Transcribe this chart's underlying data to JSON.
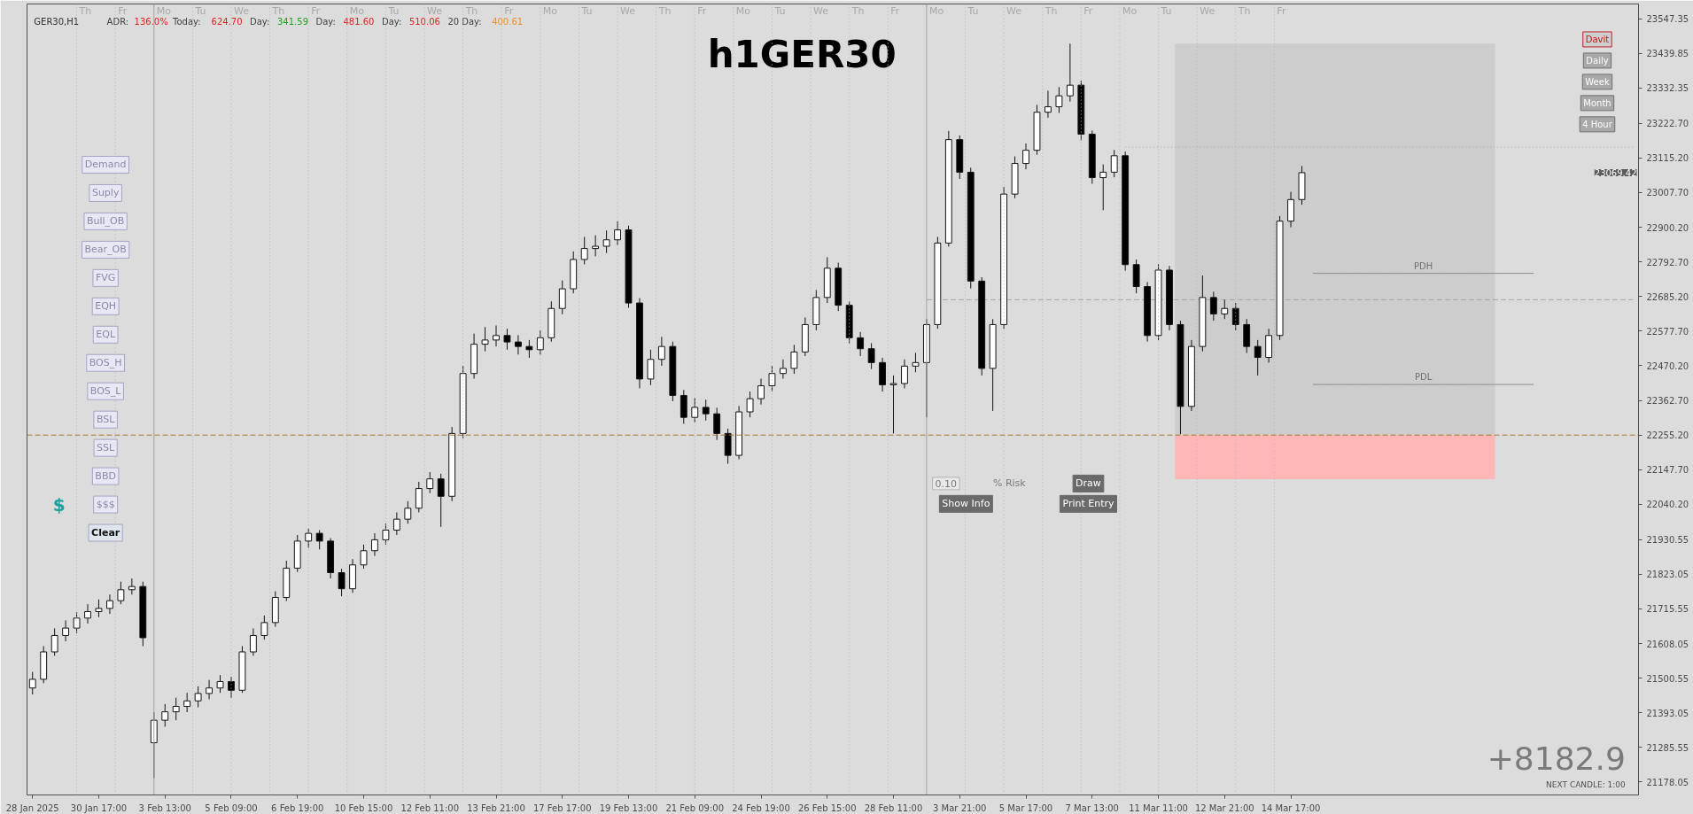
{
  "chart_data": {
    "type": "candlestick",
    "title": "h1GER30",
    "subtitle": "GER30,H1",
    "categories": [
      "28 Jan 2025",
      null,
      null,
      null,
      null,
      null,
      "30 Jan 17:00",
      null,
      null,
      null,
      null,
      null,
      "3 Feb 13:00",
      null,
      null,
      null,
      null,
      null,
      "5 Feb 09:00",
      null,
      null,
      null,
      null,
      null,
      "6 Feb 19:00",
      null,
      null,
      null,
      null,
      null,
      "10 Feb 15:00",
      null,
      null,
      null,
      null,
      null,
      "12 Feb 11:00",
      null,
      null,
      null,
      null,
      null,
      "13 Feb 21:00",
      null,
      null,
      null,
      null,
      null,
      "17 Feb 17:00",
      null,
      null,
      null,
      null,
      null,
      "19 Feb 13:00",
      null,
      null,
      null,
      null,
      null,
      "21 Feb 09:00",
      null,
      null,
      null,
      null,
      null,
      "24 Feb 19:00",
      null,
      null,
      null,
      null,
      null,
      "26 Feb 15:00",
      null,
      null,
      null,
      null,
      null,
      "28 Feb 11:00",
      null,
      null,
      null,
      null,
      null,
      "3 Mar 21:00",
      null,
      null,
      null,
      null,
      null,
      "5 Mar 17:00",
      null,
      null,
      null,
      null,
      null,
      "7 Mar 13:00",
      null,
      null,
      null,
      null,
      null,
      "11 Mar 11:00",
      null,
      null,
      null,
      null,
      null,
      "12 Mar 21:00",
      null,
      null,
      null,
      null,
      null,
      "14 Mar 17:00",
      null,
      null,
      null,
      null,
      null,
      null,
      null,
      null,
      null,
      null,
      null,
      null,
      null,
      null,
      null,
      null,
      null,
      null,
      null,
      null,
      null,
      null,
      null,
      null,
      null,
      null,
      null,
      null,
      null,
      null,
      null
    ],
    "ohlc": [
      [
        21470,
        21520,
        21450,
        21497
      ],
      [
        21497,
        21600,
        21485,
        21582
      ],
      [
        21582,
        21655,
        21570,
        21633
      ],
      [
        21633,
        21680,
        21615,
        21656
      ],
      [
        21656,
        21705,
        21640,
        21687
      ],
      [
        21687,
        21730,
        21670,
        21707
      ],
      [
        21707,
        21745,
        21690,
        21717
      ],
      [
        21717,
        21760,
        21700,
        21741
      ],
      [
        21741,
        21800,
        21730,
        21775
      ],
      [
        21775,
        21810,
        21760,
        21785
      ],
      [
        21785,
        21800,
        21600,
        21626
      ],
      [
        21300,
        21395,
        21190,
        21370
      ],
      [
        21370,
        21420,
        21350,
        21396
      ],
      [
        21396,
        21440,
        21370,
        21413
      ],
      [
        21413,
        21455,
        21395,
        21430
      ],
      [
        21430,
        21475,
        21410,
        21453
      ],
      [
        21453,
        21495,
        21435,
        21470
      ],
      [
        21470,
        21510,
        21455,
        21490
      ],
      [
        21490,
        21505,
        21440,
        21463
      ],
      [
        21463,
        21600,
        21455,
        21582
      ],
      [
        21582,
        21655,
        21570,
        21633
      ],
      [
        21633,
        21695,
        21620,
        21673
      ],
      [
        21673,
        21770,
        21660,
        21751
      ],
      [
        21751,
        21865,
        21740,
        21842
      ],
      [
        21842,
        21945,
        21830,
        21926
      ],
      [
        21926,
        21965,
        21905,
        21950
      ],
      [
        21950,
        21960,
        21900,
        21926
      ],
      [
        21926,
        21935,
        21810,
        21828
      ],
      [
        21828,
        21840,
        21755,
        21778
      ],
      [
        21778,
        21870,
        21765,
        21852
      ],
      [
        21852,
        21915,
        21840,
        21896
      ],
      [
        21896,
        21950,
        21880,
        21930
      ],
      [
        21930,
        21980,
        21915,
        21960
      ],
      [
        21960,
        22015,
        21945,
        21994
      ],
      [
        21994,
        22050,
        21980,
        22028
      ],
      [
        22028,
        22110,
        22015,
        22089
      ],
      [
        22089,
        22140,
        22075,
        22119
      ],
      [
        22119,
        22135,
        21970,
        22065
      ],
      [
        22065,
        22280,
        22050,
        22260
      ],
      [
        22260,
        22470,
        22245,
        22446
      ],
      [
        22446,
        22570,
        22430,
        22537
      ],
      [
        22537,
        22590,
        22515,
        22550
      ],
      [
        22550,
        22595,
        22530,
        22564
      ],
      [
        22564,
        22585,
        22520,
        22544
      ],
      [
        22544,
        22565,
        22505,
        22530
      ],
      [
        22530,
        22550,
        22495,
        22520
      ],
      [
        22520,
        22580,
        22505,
        22557
      ],
      [
        22557,
        22670,
        22545,
        22648
      ],
      [
        22648,
        22735,
        22630,
        22709
      ],
      [
        22709,
        22825,
        22695,
        22800
      ],
      [
        22800,
        22870,
        22785,
        22834
      ],
      [
        22834,
        22875,
        22810,
        22841
      ],
      [
        22841,
        22890,
        22820,
        22861
      ],
      [
        22861,
        22918,
        22845,
        22892
      ],
      [
        22892,
        22905,
        22650,
        22665
      ],
      [
        22665,
        22680,
        22400,
        22429
      ],
      [
        22429,
        22520,
        22410,
        22490
      ],
      [
        22490,
        22560,
        22470,
        22530
      ],
      [
        22530,
        22545,
        22360,
        22378
      ],
      [
        22378,
        22395,
        22290,
        22310
      ],
      [
        22310,
        22370,
        22295,
        22341
      ],
      [
        22341,
        22365,
        22300,
        22321
      ],
      [
        22321,
        22340,
        22240,
        22260
      ],
      [
        22260,
        22275,
        22166,
        22192
      ],
      [
        22192,
        22345,
        22180,
        22327
      ],
      [
        22327,
        22390,
        22310,
        22368
      ],
      [
        22368,
        22430,
        22350,
        22408
      ],
      [
        22408,
        22470,
        22390,
        22446
      ],
      [
        22446,
        22490,
        22430,
        22462
      ],
      [
        22462,
        22535,
        22445,
        22513
      ],
      [
        22513,
        22620,
        22500,
        22598
      ],
      [
        22598,
        22705,
        22580,
        22682
      ],
      [
        22682,
        22807,
        22665,
        22773
      ],
      [
        22773,
        22790,
        22640,
        22658
      ],
      [
        22658,
        22670,
        22540,
        22557
      ],
      [
        22557,
        22575,
        22500,
        22523
      ],
      [
        22523,
        22540,
        22460,
        22480
      ],
      [
        22480,
        22495,
        22390,
        22411
      ],
      [
        22411,
        22440,
        22260,
        22415
      ],
      [
        22415,
        22490,
        22400,
        22469
      ],
      [
        22469,
        22510,
        22450,
        22480
      ],
      [
        22480,
        22615,
        22310,
        22598
      ],
      [
        22598,
        22870,
        22585,
        22851
      ],
      [
        22851,
        23199,
        22840,
        23172
      ],
      [
        23172,
        23185,
        23050,
        23071
      ],
      [
        23071,
        23085,
        22710,
        22733
      ],
      [
        22733,
        22745,
        22440,
        22462
      ],
      [
        22462,
        22615,
        22330,
        22598
      ],
      [
        22598,
        23025,
        22585,
        23003
      ],
      [
        23003,
        23120,
        22990,
        23098
      ],
      [
        23098,
        23160,
        23080,
        23139
      ],
      [
        23139,
        23280,
        23125,
        23257
      ],
      [
        23257,
        23324,
        23240,
        23274
      ],
      [
        23274,
        23335,
        23255,
        23308
      ],
      [
        23308,
        23470,
        23290,
        23341
      ],
      [
        23341,
        23355,
        23170,
        23189
      ],
      [
        23189,
        23200,
        23035,
        23054
      ],
      [
        23054,
        23095,
        22953,
        23071
      ],
      [
        23071,
        23140,
        23055,
        23122
      ],
      [
        23122,
        23135,
        22765,
        22784
      ],
      [
        22784,
        22800,
        22695,
        22716
      ],
      [
        22716,
        22730,
        22545,
        22564
      ],
      [
        22564,
        22785,
        22550,
        22767
      ],
      [
        22767,
        22780,
        22580,
        22598
      ],
      [
        22598,
        22610,
        22258,
        22344
      ],
      [
        22344,
        22550,
        22330,
        22530
      ],
      [
        22530,
        22750,
        22515,
        22682
      ],
      [
        22682,
        22700,
        22610,
        22631
      ],
      [
        22631,
        22675,
        22615,
        22648
      ],
      [
        22648,
        22665,
        22580,
        22598
      ],
      [
        22598,
        22615,
        22510,
        22530
      ],
      [
        22530,
        22550,
        22440,
        22496
      ],
      [
        22496,
        22585,
        22480,
        22564
      ],
      [
        22564,
        22935,
        22550,
        22919
      ],
      [
        22919,
        23010,
        22900,
        22986
      ],
      [
        22986,
        23090,
        22970,
        23069.42
      ],
      null,
      null,
      null,
      null,
      null,
      null,
      null,
      null,
      null,
      null,
      null,
      null,
      null,
      null,
      null,
      null,
      null,
      null,
      null,
      null,
      null,
      null,
      null,
      null,
      null,
      null,
      null,
      null,
      null,
      null
    ],
    "ylim": [
      21138,
      23593
    ],
    "yticks": [
      {
        "value": 23547.35,
        "label": "23547.35"
      },
      {
        "value": 23439.85,
        "label": "23439.85"
      },
      {
        "value": 23332.35,
        "label": "23332.35"
      },
      {
        "value": 23222.7,
        "label": "23222.70"
      },
      {
        "value": 23115.2,
        "label": "23115.20"
      },
      {
        "value": 23007.7,
        "label": "23007.70"
      },
      {
        "value": 22900.2,
        "label": "22900.20"
      },
      {
        "value": 22792.7,
        "label": "22792.70"
      },
      {
        "value": 22685.2,
        "label": "22685.20"
      },
      {
        "value": 22577.7,
        "label": "22577.70"
      },
      {
        "value": 22470.2,
        "label": "22470.20"
      },
      {
        "value": 22362.7,
        "label": "22362.70"
      },
      {
        "value": 22255.2,
        "label": "22255.20"
      },
      {
        "value": 22147.7,
        "label": "22147.70"
      },
      {
        "value": 22040.2,
        "label": "22040.20"
      },
      {
        "value": 21930.55,
        "label": "21930.55"
      },
      {
        "value": 21823.05,
        "label": "21823.05"
      },
      {
        "value": 21715.55,
        "label": "21715.55"
      },
      {
        "value": 21608.05,
        "label": "21608.05"
      },
      {
        "value": 21500.55,
        "label": "21500.55"
      },
      {
        "value": 21393.05,
        "label": "21393.05"
      },
      {
        "value": 21285.55,
        "label": "21285.55"
      },
      {
        "value": 21178.05,
        "label": "21178.05"
      }
    ],
    "series": [
      {
        "type": "line",
        "color": "#a8a8a8",
        "line_style": "dotted",
        "values": [
          null,
          null,
          null,
          null,
          null,
          null,
          null,
          null,
          null,
          null,
          null,
          null,
          null,
          null,
          null,
          null,
          null,
          null,
          null,
          null,
          null,
          null,
          null,
          null,
          null,
          null,
          null,
          null,
          null,
          null,
          null,
          null,
          null,
          null,
          null,
          null,
          null,
          null,
          null,
          null,
          null,
          null,
          null,
          null,
          null,
          null,
          null,
          null,
          null,
          null,
          null,
          null,
          null,
          null,
          null,
          null,
          null,
          null,
          null,
          null,
          null,
          null,
          null,
          null,
          null,
          null,
          null,
          null,
          null,
          null,
          null,
          null,
          null,
          null,
          null,
          null,
          null,
          null,
          null,
          null,
          null,
          null,
          null,
          null,
          null,
          null,
          null,
          null,
          null,
          null,
          null,
          null,
          null,
          null,
          null,
          null,
          null,
          null,
          null,
          23149,
          23149,
          23149,
          23149,
          23149,
          23149,
          23149,
          23149,
          23149,
          23149,
          23149,
          23149,
          23149,
          23149,
          23149,
          23149,
          23149,
          23149,
          23149,
          23149,
          23149,
          23149,
          23149,
          23149,
          23149,
          23149,
          23149,
          23149,
          23149,
          23149,
          23149,
          23149,
          23149,
          23149,
          23149,
          23149,
          23149,
          23149,
          23149,
          23149,
          23149,
          23149,
          23149,
          23149,
          23149,
          23149,
          23149
        ]
      },
      {
        "type": "line",
        "color": "#a8a8a8",
        "line_style": "dashed",
        "values": [
          null,
          null,
          null,
          null,
          null,
          null,
          null,
          null,
          null,
          null,
          null,
          null,
          null,
          null,
          null,
          null,
          null,
          null,
          null,
          null,
          null,
          null,
          null,
          null,
          null,
          null,
          null,
          null,
          null,
          null,
          null,
          null,
          null,
          null,
          null,
          null,
          null,
          null,
          null,
          null,
          null,
          null,
          null,
          null,
          null,
          null,
          null,
          null,
          null,
          null,
          null,
          null,
          null,
          null,
          null,
          null,
          null,
          null,
          null,
          null,
          null,
          null,
          null,
          null,
          null,
          null,
          null,
          null,
          null,
          null,
          null,
          null,
          null,
          null,
          null,
          null,
          null,
          null,
          null,
          null,
          null,
          22675,
          22675,
          22675,
          22675,
          22675,
          22675,
          22675,
          22675,
          22675,
          22675,
          22675,
          22675,
          22675,
          22675,
          22675,
          22675,
          22675,
          22675,
          22675,
          22675,
          22675,
          22675,
          22675,
          22675,
          22675,
          22675,
          22675,
          22675,
          22675,
          22675,
          22675,
          22675,
          22675,
          22675,
          22675,
          22675,
          22675,
          22675,
          22675,
          22675,
          22675,
          22675,
          22675,
          22675,
          22675,
          22675,
          22675,
          22675,
          22675,
          22675,
          22675,
          22675,
          22675,
          22675,
          22675,
          22675,
          22675,
          22675,
          22675,
          22675,
          22675,
          22675,
          22675,
          22675,
          22675
        ]
      },
      {
        "type": "line",
        "name": "PDH",
        "color": "#8c8c8c",
        "values": [
          null,
          null,
          null,
          null,
          null,
          null,
          null,
          null,
          null,
          null,
          null,
          null,
          null,
          null,
          null,
          null,
          null,
          null,
          null,
          null,
          null,
          null,
          null,
          null,
          null,
          null,
          null,
          null,
          null,
          null,
          null,
          null,
          null,
          null,
          null,
          null,
          null,
          null,
          null,
          null,
          null,
          null,
          null,
          null,
          null,
          null,
          null,
          null,
          null,
          null,
          null,
          null,
          null,
          null,
          null,
          null,
          null,
          null,
          null,
          null,
          null,
          null,
          null,
          null,
          null,
          null,
          null,
          null,
          null,
          null,
          null,
          null,
          null,
          null,
          null,
          null,
          null,
          null,
          null,
          null,
          null,
          null,
          null,
          null,
          null,
          null,
          null,
          null,
          null,
          null,
          null,
          null,
          null,
          null,
          null,
          null,
          null,
          null,
          null,
          null,
          null,
          null,
          null,
          null,
          null,
          null,
          null,
          null,
          null,
          null,
          null,
          null,
          null,
          null,
          null,
          null,
          22757,
          22757,
          22757,
          22757,
          22757,
          22757,
          22757,
          22757,
          22757,
          22757,
          22757,
          22757,
          22757,
          22757,
          22757,
          22757,
          22757,
          22757,
          22757,
          22757,
          22757,
          null,
          null,
          null,
          null,
          null,
          null,
          null,
          null,
          null
        ]
      },
      {
        "type": "line",
        "name": "PDL",
        "color": "#8c8c8c",
        "values": [
          null,
          null,
          null,
          null,
          null,
          null,
          null,
          null,
          null,
          null,
          null,
          null,
          null,
          null,
          null,
          null,
          null,
          null,
          null,
          null,
          null,
          null,
          null,
          null,
          null,
          null,
          null,
          null,
          null,
          null,
          null,
          null,
          null,
          null,
          null,
          null,
          null,
          null,
          null,
          null,
          null,
          null,
          null,
          null,
          null,
          null,
          null,
          null,
          null,
          null,
          null,
          null,
          null,
          null,
          null,
          null,
          null,
          null,
          null,
          null,
          null,
          null,
          null,
          null,
          null,
          null,
          null,
          null,
          null,
          null,
          null,
          null,
          null,
          null,
          null,
          null,
          null,
          null,
          null,
          null,
          null,
          null,
          null,
          null,
          null,
          null,
          null,
          null,
          null,
          null,
          null,
          null,
          null,
          null,
          null,
          null,
          null,
          null,
          null,
          null,
          null,
          null,
          null,
          null,
          null,
          null,
          null,
          null,
          null,
          null,
          null,
          null,
          null,
          null,
          null,
          null,
          22412,
          22412,
          22412,
          22412,
          22412,
          22412,
          22412,
          22412,
          22412,
          22412,
          22412,
          22412,
          22412,
          22412,
          22412,
          22412,
          22412,
          22412,
          22412,
          22412,
          22412,
          null,
          null,
          null,
          null,
          null,
          null,
          null,
          null,
          null
        ]
      }
    ],
    "bands": [
      {
        "axis": "y",
        "from": 22255,
        "to": 23470,
        "color": "#cdcdcd"
      },
      {
        "axis": "y",
        "from": 22118,
        "to": 22255,
        "color": "#ffb6b6"
      }
    ],
    "ref_lines": [
      {
        "axis": "y",
        "value": 22255,
        "color": "#a0782e",
        "line_style": "dashed"
      }
    ],
    "annotations": [
      "ADR:",
      "136.0%",
      "Today:",
      "624.70",
      "Day:",
      "341.59",
      "Day:",
      "481.60",
      "Day:",
      "510.06",
      "20 Day:",
      "400.61",
      "Demand",
      "Suply",
      "Bull_OB",
      "Bear_OB",
      "FVG",
      "EQH",
      "EQL",
      "BOS_H",
      "BOS_L",
      "BSL",
      "SSL",
      "BBD",
      "$$$",
      "Clear",
      "$",
      "Davit",
      "Daily",
      "Week",
      "Month",
      "4 Hour",
      "0.10",
      "% Risk",
      "Draw",
      "Show Info",
      "Print Entry",
      "+8182.9",
      "NEXT CANDLE: 1:00",
      "23069.42",
      "Th",
      "Fr",
      "Mo",
      "Tu",
      "We",
      "Th",
      "Fr",
      "Mo",
      "Tu",
      "We",
      "Th",
      "Fr",
      "Mo",
      "Tu",
      "We",
      "Th",
      "Fr",
      "Mo",
      "Tu",
      "We",
      "Th",
      "Fr",
      "Mo",
      "Tu",
      "We",
      "Th",
      "Fr",
      "Mo",
      "Tu",
      "We",
      "Th",
      "Fr"
    ]
  }
}
